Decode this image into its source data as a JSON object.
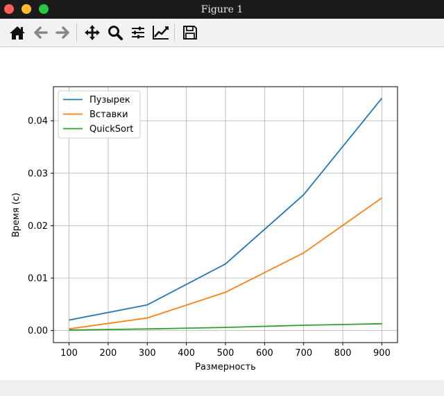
{
  "window": {
    "title": "Figure 1"
  },
  "toolbar": {
    "icons": [
      "home-icon",
      "back-arrow-icon",
      "forward-arrow-icon",
      "pan-icon",
      "zoom-icon",
      "configure-subplots-icon",
      "edit-axis-icon",
      "save-icon"
    ]
  },
  "colors": {
    "series_1": "#1f77b4",
    "series_2": "#ff7f0e",
    "series_3": "#2ca02c",
    "titlebar": "#1b1b1b",
    "toolbar": "#f2f2f2"
  },
  "chart_data": {
    "type": "line",
    "title": "",
    "xlabel": "Размерность",
    "ylabel": "Время (с)",
    "xlim": [
      60,
      940
    ],
    "ylim": [
      -0.0023,
      0.0465
    ],
    "xticks": [
      100,
      200,
      300,
      400,
      500,
      600,
      700,
      800,
      900
    ],
    "xtick_labels": [
      "100",
      "200",
      "300",
      "400",
      "500",
      "600",
      "700",
      "800",
      "900"
    ],
    "yticks": [
      0.0,
      0.01,
      0.02,
      0.03,
      0.04
    ],
    "ytick_labels": [
      "0.00",
      "0.01",
      "0.02",
      "0.03",
      "0.04"
    ],
    "grid": true,
    "legend_position": "top-left",
    "x": [
      100,
      300,
      500,
      700,
      900
    ],
    "series": [
      {
        "name": "Пузырек",
        "values": [
          0.002,
          0.0049,
          0.0127,
          0.0259,
          0.0443
        ]
      },
      {
        "name": "Вставки",
        "values": [
          0.0003,
          0.0024,
          0.0073,
          0.0148,
          0.0253
        ]
      },
      {
        "name": "QuickSort",
        "values": [
          0.0001,
          0.0003,
          0.0006,
          0.001,
          0.0013
        ]
      }
    ]
  }
}
